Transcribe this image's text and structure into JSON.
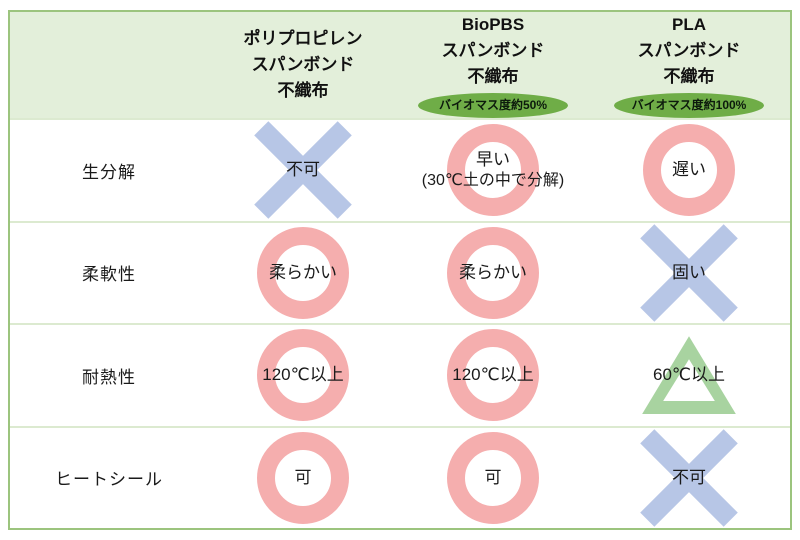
{
  "colors": {
    "header_bg": "#e3efda",
    "table_border": "#9cc47e",
    "row_divider": "#dcead0",
    "badge_bg": "#6fad47",
    "circle_color": "#f5aeae",
    "cross_color": "#b7c6e6",
    "triangle_color": "#a8d3a0"
  },
  "header": {
    "columns": [
      {
        "lines": [
          "ポリプロピレン",
          "スパンボンド",
          "不織布"
        ],
        "badge": ""
      },
      {
        "lines": [
          "BioPBS",
          "スパンボンド",
          "不織布"
        ],
        "badge": "バイオマス度約50%"
      },
      {
        "lines": [
          "PLA",
          "スパンボンド",
          "不織布"
        ],
        "badge": "バイオマス度約100%"
      }
    ]
  },
  "rows": [
    {
      "label": "生分解",
      "cells": [
        {
          "mark": "cross",
          "text": "不可",
          "subtext": ""
        },
        {
          "mark": "circle",
          "text": "早い",
          "subtext": "(30℃土の中で分解)"
        },
        {
          "mark": "circle",
          "text": "遅い",
          "subtext": ""
        }
      ]
    },
    {
      "label": "柔軟性",
      "cells": [
        {
          "mark": "circle",
          "text": "柔らかい",
          "subtext": ""
        },
        {
          "mark": "circle",
          "text": "柔らかい",
          "subtext": ""
        },
        {
          "mark": "cross",
          "text": "固い",
          "subtext": ""
        }
      ]
    },
    {
      "label": "耐熱性",
      "cells": [
        {
          "mark": "circle",
          "text": "120℃以上",
          "subtext": ""
        },
        {
          "mark": "circle",
          "text": "120℃以上",
          "subtext": ""
        },
        {
          "mark": "triangle",
          "text": "60℃以上",
          "subtext": ""
        }
      ]
    },
    {
      "label": "ヒートシール",
      "cells": [
        {
          "mark": "circle",
          "text": "可",
          "subtext": ""
        },
        {
          "mark": "circle",
          "text": "可",
          "subtext": ""
        },
        {
          "mark": "cross",
          "text": "不可",
          "subtext": ""
        }
      ]
    }
  ]
}
